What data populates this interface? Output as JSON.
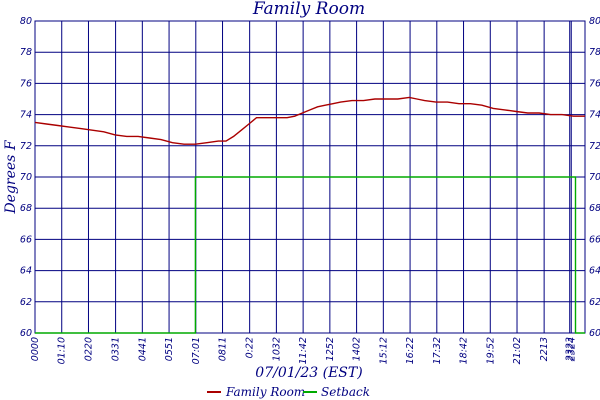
{
  "chart_data": {
    "type": "line",
    "title": "Family Room",
    "xlabel": "07/01/23 (EST)",
    "ylabel": "Degrees F",
    "ylim": [
      60,
      80
    ],
    "y_ticks": [
      60,
      62,
      64,
      66,
      68,
      70,
      72,
      74,
      76,
      78,
      80
    ],
    "x_range_minutes": [
      0,
      1440
    ],
    "x_ticks": [
      {
        "minute": 0,
        "label": "0000"
      },
      {
        "minute": 70,
        "label": "01:10"
      },
      {
        "minute": 140,
        "label": "0220"
      },
      {
        "minute": 211,
        "label": "0331"
      },
      {
        "minute": 281,
        "label": "0441"
      },
      {
        "minute": 351,
        "label": "0551"
      },
      {
        "minute": 421,
        "label": "07:01"
      },
      {
        "minute": 491,
        "label": "0811"
      },
      {
        "minute": 562,
        "label": "0:22"
      },
      {
        "minute": 632,
        "label": "1032"
      },
      {
        "minute": 702,
        "label": "11:42"
      },
      {
        "minute": 772,
        "label": "1252"
      },
      {
        "minute": 842,
        "label": "1402"
      },
      {
        "minute": 912,
        "label": "15:12"
      },
      {
        "minute": 982,
        "label": "16:22"
      },
      {
        "minute": 1052,
        "label": "17:32"
      },
      {
        "minute": 1122,
        "label": "18:42"
      },
      {
        "minute": 1192,
        "label": "19:52"
      },
      {
        "minute": 1262,
        "label": "21:02"
      },
      {
        "minute": 1333,
        "label": "2213"
      },
      {
        "minute": 1400,
        "label": "2323"
      },
      {
        "minute": 1404,
        "label": "2324"
      }
    ],
    "grid": true,
    "legend_position": "bottom",
    "series": [
      {
        "name": "Family Room",
        "color": "#aa0000",
        "x": [
          0,
          30,
          60,
          90,
          120,
          150,
          180,
          210,
          240,
          270,
          300,
          330,
          360,
          390,
          420,
          450,
          480,
          500,
          520,
          540,
          560,
          580,
          600,
          620,
          640,
          660,
          680,
          700,
          720,
          740,
          760,
          780,
          800,
          830,
          860,
          890,
          920,
          950,
          980,
          1000,
          1020,
          1050,
          1080,
          1110,
          1140,
          1170,
          1200,
          1230,
          1260,
          1290,
          1320,
          1350,
          1380,
          1410,
          1440
        ],
        "y": [
          73.5,
          73.4,
          73.3,
          73.2,
          73.1,
          73.0,
          72.9,
          72.7,
          72.6,
          72.6,
          72.5,
          72.4,
          72.2,
          72.1,
          72.1,
          72.2,
          72.3,
          72.3,
          72.6,
          73.0,
          73.4,
          73.8,
          73.8,
          73.8,
          73.8,
          73.8,
          73.9,
          74.1,
          74.3,
          74.5,
          74.6,
          74.7,
          74.8,
          74.9,
          74.9,
          75.0,
          75.0,
          75.0,
          75.1,
          75.0,
          74.9,
          74.8,
          74.8,
          74.7,
          74.7,
          74.6,
          74.4,
          74.3,
          74.2,
          74.1,
          74.1,
          74.0,
          74.0,
          73.9,
          73.9
        ]
      },
      {
        "name": "Setback",
        "color": "#00aa00",
        "x": [
          0,
          420,
          420,
          1415,
          1415,
          1440
        ],
        "y": [
          60,
          60,
          70,
          70,
          60,
          60
        ]
      }
    ]
  }
}
